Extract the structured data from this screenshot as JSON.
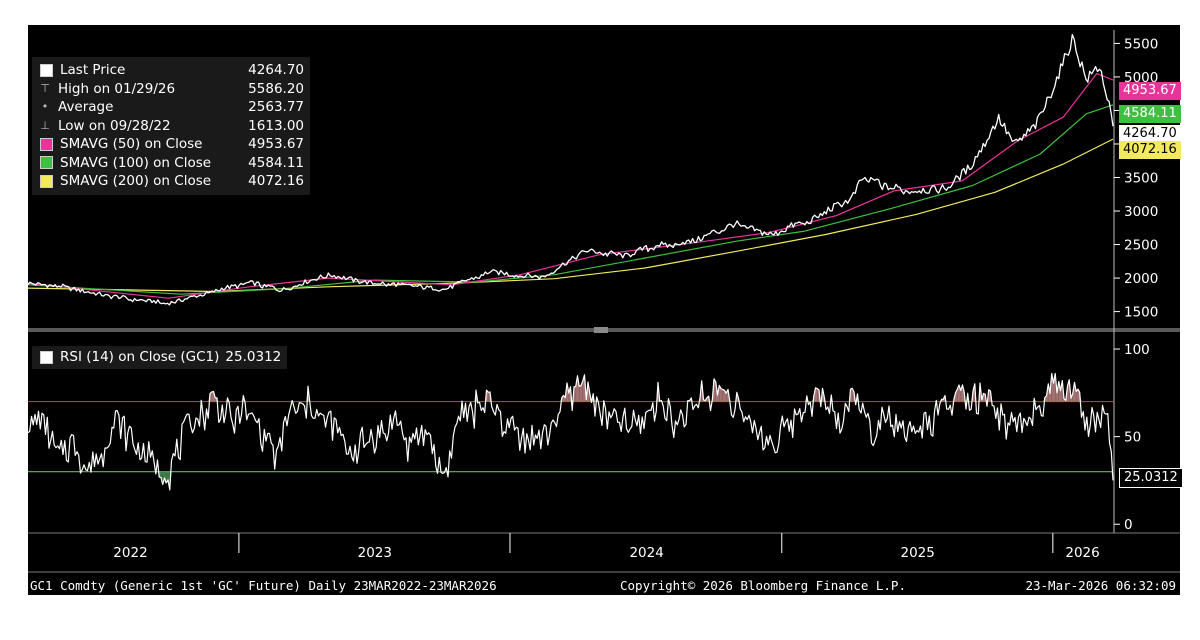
{
  "chart_data": [
    {
      "type": "line",
      "panel": "price",
      "ylim": [
        1300,
        5700
      ],
      "y_ticks": [
        "1500",
        "2000",
        "2500",
        "3000",
        "3500",
        "4000",
        "4500",
        "5000",
        "5500"
      ],
      "legend_placement": "top-left",
      "legend": [
        {
          "icon": "white-square",
          "label": "Last Price",
          "value": "4264.70",
          "color": "#ffffff"
        },
        {
          "icon": "high-marker",
          "label": "High on 01/29/26",
          "value": "5586.20"
        },
        {
          "icon": "average-marker",
          "label": "Average",
          "value": "2563.77"
        },
        {
          "icon": "low-marker",
          "label": "Low on 09/28/22",
          "value": "1613.00"
        },
        {
          "icon": "magenta-square",
          "label": "SMAVG (50)  on Close",
          "value": "4953.67",
          "color": "#e8349a"
        },
        {
          "icon": "green-square",
          "label": "SMAVG (100)  on Close",
          "value": "4584.11",
          "color": "#3fbf3f"
        },
        {
          "icon": "yellow-square",
          "label": "SMAVG (200)  on Close",
          "value": "4072.16",
          "color": "#f2ea5c"
        }
      ],
      "series": [
        {
          "name": "Last Price",
          "color": "#ffffff",
          "x": [
            "2022-03-23",
            "2022-05-01",
            "2022-07-15",
            "2022-09-28",
            "2022-11-15",
            "2023-01-15",
            "2023-03-01",
            "2023-05-04",
            "2023-06-30",
            "2023-10-06",
            "2023-12-04",
            "2024-02-14",
            "2024-04-12",
            "2024-06-01",
            "2024-07-17",
            "2024-09-01",
            "2024-10-30",
            "2024-12-15",
            "2025-01-31",
            "2025-02-24",
            "2025-04-03",
            "2025-04-21",
            "2025-06-15",
            "2025-08-15",
            "2025-09-15",
            "2025-10-20",
            "2025-11-10",
            "2025-12-10",
            "2026-01-29",
            "2026-02-15",
            "2026-03-05",
            "2026-03-23"
          ],
          "y": [
            1940,
            1880,
            1720,
            1613,
            1770,
            1930,
            1830,
            2050,
            1920,
            1840,
            2080,
            2010,
            2400,
            2330,
            2480,
            2530,
            2800,
            2650,
            2820,
            2950,
            3150,
            3480,
            3300,
            3360,
            3700,
            4380,
            4000,
            4300,
            5586,
            4950,
            5200,
            4264.7
          ]
        },
        {
          "name": "SMAVG (50)",
          "color": "#e8349a",
          "x": [
            "2022-03-23",
            "2022-09-28",
            "2023-01-15",
            "2023-05-01",
            "2023-10-15",
            "2024-01-15",
            "2024-05-01",
            "2024-09-01",
            "2024-12-15",
            "2025-03-15",
            "2025-06-01",
            "2025-09-01",
            "2025-11-15",
            "2026-01-15",
            "2026-03-01",
            "2026-03-23"
          ],
          "y": [
            1920,
            1700,
            1870,
            2000,
            1900,
            2050,
            2350,
            2520,
            2680,
            2930,
            3300,
            3450,
            4050,
            4400,
            5050,
            4953.67
          ]
        },
        {
          "name": "SMAVG (100)",
          "color": "#3fbf3f",
          "x": [
            "2022-03-23",
            "2022-10-15",
            "2023-03-01",
            "2023-07-01",
            "2023-11-15",
            "2024-03-01",
            "2024-07-01",
            "2024-11-01",
            "2025-02-01",
            "2025-06-01",
            "2025-09-15",
            "2025-12-15",
            "2026-02-15",
            "2026-03-23"
          ],
          "y": [
            1900,
            1760,
            1840,
            1970,
            1940,
            2050,
            2300,
            2550,
            2700,
            3050,
            3380,
            3850,
            4450,
            4584.11
          ]
        },
        {
          "name": "SMAVG (200)",
          "color": "#f2ea5c",
          "x": [
            "2022-03-23",
            "2022-12-01",
            "2023-05-01",
            "2023-11-01",
            "2024-03-01",
            "2024-07-01",
            "2024-11-01",
            "2025-03-01",
            "2025-07-01",
            "2025-10-15",
            "2026-01-15",
            "2026-03-23"
          ],
          "y": [
            1850,
            1800,
            1870,
            1930,
            1990,
            2150,
            2400,
            2650,
            2950,
            3280,
            3700,
            4072.16
          ]
        }
      ],
      "last_value_tags": [
        {
          "value": "4953.67",
          "background": "#e8349a",
          "text_color": "#ffffff"
        },
        {
          "value": "4584.11",
          "background": "#3fbf3f",
          "text_color": "#ffffff"
        },
        {
          "value": "4264.70",
          "background": "#ffffff",
          "text_color": "#000000"
        },
        {
          "value": "4072.16",
          "background": "#f2ea5c",
          "text_color": "#000000"
        }
      ]
    },
    {
      "type": "line",
      "panel": "rsi",
      "ylim": [
        -5,
        108
      ],
      "y_ticks": [
        "0",
        "50",
        "100"
      ],
      "legend": [
        {
          "icon": "white-square",
          "label": "RSI (14)  on Close (GC1)",
          "value": "25.0312",
          "color": "#ffffff"
        }
      ],
      "overbought": 70,
      "oversold": 30,
      "series": [
        {
          "name": "RSI (14)",
          "color": "#ffffff",
          "x": [
            "2022-03-23",
            "2022-04-10",
            "2022-05-01",
            "2022-05-20",
            "2022-06-10",
            "2022-07-01",
            "2022-07-20",
            "2022-08-10",
            "2022-09-01",
            "2022-09-28",
            "2022-10-20",
            "2022-11-10",
            "2022-12-01",
            "2022-12-20",
            "2023-01-10",
            "2023-02-01",
            "2023-02-20",
            "2023-03-10",
            "2023-04-05",
            "2023-04-20",
            "2023-05-10",
            "2023-06-01",
            "2023-06-20",
            "2023-07-10",
            "2023-08-01",
            "2023-08-20",
            "2023-09-10",
            "2023-10-06",
            "2023-10-25",
            "2023-11-15",
            "2023-12-05",
            "2023-12-25",
            "2024-01-15",
            "2024-02-10",
            "2024-03-01",
            "2024-03-20",
            "2024-04-10",
            "2024-05-01",
            "2024-05-20",
            "2024-06-10",
            "2024-07-01",
            "2024-07-20",
            "2024-08-10",
            "2024-09-01",
            "2024-09-20",
            "2024-10-10",
            "2024-10-30",
            "2024-11-20",
            "2024-12-10",
            "2025-01-01",
            "2025-01-20",
            "2025-02-10",
            "2025-03-01",
            "2025-03-20",
            "2025-04-10",
            "2025-05-01",
            "2025-05-20",
            "2025-06-10",
            "2025-07-01",
            "2025-07-20",
            "2025-08-10",
            "2025-09-01",
            "2025-09-20",
            "2025-10-10",
            "2025-10-30",
            "2025-11-20",
            "2025-12-10",
            "2026-01-01",
            "2026-01-20",
            "2026-01-29",
            "2026-02-15",
            "2026-03-01",
            "2026-03-15",
            "2026-03-23"
          ],
          "y": [
            55,
            62,
            40,
            45,
            33,
            42,
            60,
            48,
            36,
            28,
            50,
            62,
            72,
            58,
            66,
            52,
            40,
            62,
            70,
            60,
            55,
            40,
            48,
            50,
            58,
            44,
            52,
            28,
            62,
            66,
            70,
            58,
            52,
            48,
            60,
            74,
            82,
            66,
            55,
            58,
            62,
            72,
            58,
            66,
            74,
            78,
            70,
            55,
            48,
            52,
            60,
            72,
            70,
            58,
            76,
            52,
            62,
            56,
            50,
            58,
            66,
            74,
            70,
            68,
            52,
            56,
            62,
            80,
            76,
            84,
            55,
            58,
            65,
            25.0312
          ]
        }
      ],
      "last_value_tags": [
        {
          "value": "25.0312",
          "background": "#000000",
          "text_color": "#ffffff"
        }
      ]
    }
  ],
  "x_axis": {
    "start": "2022-03-23",
    "end": "2026-03-23",
    "year_labels": [
      "2022",
      "2023",
      "2024",
      "2025",
      "2026"
    ],
    "year_label_dates": [
      "2022-08-08",
      "2023-07-03",
      "2024-07-03",
      "2025-07-03",
      "2026-02-10"
    ],
    "dividers": [
      "2023-01-01",
      "2024-01-01",
      "2025-01-01",
      "2026-01-01"
    ]
  },
  "footer": {
    "left": "GC1 Comdty (Generic 1st 'GC' Future) Daily 23MAR2022-23MAR2026",
    "center": "Copyright© 2026 Bloomberg Finance L.P.",
    "right": "23-Mar-2026 06:32:09"
  }
}
